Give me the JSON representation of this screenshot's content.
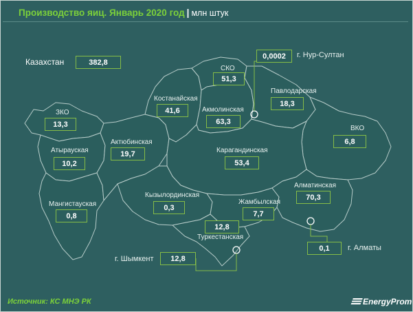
{
  "title": "Производство яиц. Январь 2020 год",
  "separator": "|",
  "unit": "млн штук",
  "country": {
    "label": "Казахстан",
    "value": "382,8"
  },
  "regions": [
    {
      "id": "zko",
      "name": "ЗКО",
      "value": "13,3"
    },
    {
      "id": "atyrau",
      "name": "Атырауская",
      "value": "10,2"
    },
    {
      "id": "mangistau",
      "name": "Мангистауская",
      "value": "0,8"
    },
    {
      "id": "aktobe",
      "name": "Актюбинская",
      "value": "19,7"
    },
    {
      "id": "kostanay",
      "name": "Костанайская",
      "value": "41,6"
    },
    {
      "id": "sko",
      "name": "СКО",
      "value": "51,3"
    },
    {
      "id": "akmola",
      "name": "Акмолинская",
      "value": "63,3"
    },
    {
      "id": "pavlodar",
      "name": "Павлодарская",
      "value": "18,3"
    },
    {
      "id": "vko",
      "name": "ВКО",
      "value": "6,8"
    },
    {
      "id": "karaganda",
      "name": "Карагандинская",
      "value": "53,4"
    },
    {
      "id": "kyzylorda",
      "name": "Кызылординская",
      "value": "0,3"
    },
    {
      "id": "zhambyl",
      "name": "Жамбылская",
      "value": "7,7"
    },
    {
      "id": "almaty-region",
      "name": "Алматинская",
      "value": "70,3"
    },
    {
      "id": "turkestan",
      "name": "Туркестанская",
      "value": "12,8"
    }
  ],
  "cities": [
    {
      "id": "nur-sultan",
      "name": "г. Нур-Султан",
      "value": "0,0002"
    },
    {
      "id": "shymkent",
      "name": "г. Шымкент",
      "value": "12,8"
    },
    {
      "id": "almaty",
      "name": "г. Алматы",
      "value": "0,1"
    }
  ],
  "source": "Источник: КС МНЭ РК",
  "logo_text": "EnergyProm",
  "colors": {
    "background": "#2e5f60",
    "region_fill": "#2b5e5d",
    "border": "#86bd47",
    "title": "#7cd13a"
  }
}
